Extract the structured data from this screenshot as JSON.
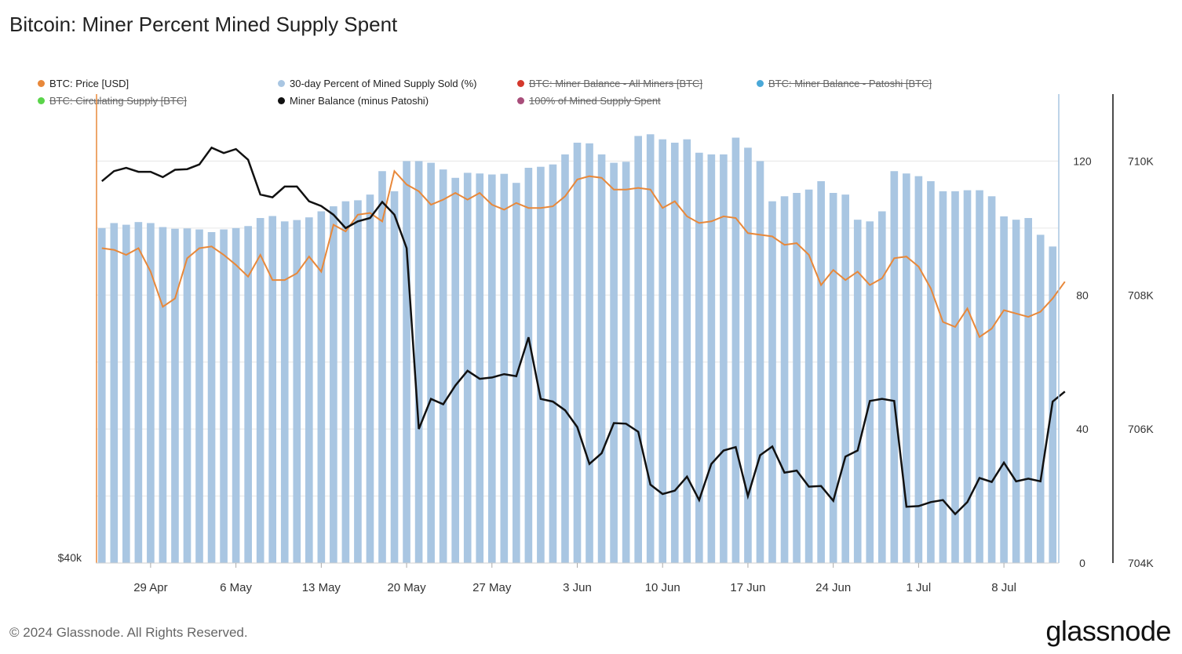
{
  "title": "Bitcoin: Miner Percent Mined Supply Spent",
  "legend": [
    {
      "label": "BTC: Price [USD]",
      "color": "#e8883a",
      "active": true
    },
    {
      "label": "30-day Percent of Mined Supply Sold (%)",
      "color": "#a9c6e2",
      "active": true
    },
    {
      "label": "BTC: Miner Balance - All Miners [BTC]",
      "color": "#d4382c",
      "active": false
    },
    {
      "label": "BTC: Miner Balance - Patoshi [BTC]",
      "color": "#4aa8d8",
      "active": false
    },
    {
      "label": "BTC: Circulating Supply [BTC]",
      "color": "#5ad44a",
      "active": false
    },
    {
      "label": "Miner Balance (minus Patoshi)",
      "color": "#111111",
      "active": true
    },
    {
      "label": "100% of Mined Supply Spent",
      "color": "#a84d7a",
      "active": false
    }
  ],
  "footer": "© 2024 Glassnode. All Rights Reserved.",
  "brand": "glassnode",
  "chart_data": {
    "type": "bar+line",
    "x_tick_labels": [
      "29 Apr",
      "6 May",
      "13 May",
      "20 May",
      "27 May",
      "3 Jun",
      "10 Jun",
      "17 Jun",
      "24 Jun",
      "1 Jul",
      "8 Jul"
    ],
    "x_tick_day_index": [
      4,
      11,
      18,
      25,
      32,
      39,
      46,
      53,
      60,
      67,
      74
    ],
    "x_start": "2024-04-25",
    "x_end": "2024-07-14",
    "left_axis": {
      "tick_labels": [
        "$40k"
      ],
      "scale": "log"
    },
    "middle_axis": {
      "ticks": [
        0,
        40,
        80,
        120
      ],
      "range": [
        0,
        140
      ]
    },
    "right_axis": {
      "ticks": [
        "704K",
        "706K",
        "708K",
        "710K"
      ],
      "range": [
        704000,
        711000
      ]
    },
    "grid": true,
    "series": [
      {
        "name": "30-day Percent of Mined Supply Sold (%)",
        "type": "bar",
        "axis": "middle",
        "color": "#a9c6e2",
        "values": [
          100,
          101.5,
          101,
          101.8,
          101.5,
          100.3,
          99.8,
          99.9,
          99.6,
          98.8,
          99.6,
          100,
          100.6,
          103,
          103.6,
          102,
          102.4,
          103.2,
          105,
          106.5,
          108,
          108.3,
          110,
          117,
          111,
          120,
          120,
          119.5,
          117.5,
          115,
          116.5,
          116.3,
          116,
          116.2,
          113.5,
          118,
          118.3,
          119,
          122,
          125.5,
          125.3,
          122,
          119.5,
          119.8,
          127.5,
          128,
          126.5,
          125.5,
          126.5,
          122.5,
          122,
          122,
          127,
          124,
          120,
          108,
          109.5,
          110.5,
          111.5,
          114,
          110.5,
          110,
          102.5,
          102,
          105,
          117,
          116.3,
          115.5,
          114,
          111,
          111,
          111.3,
          111.3,
          109.5,
          103.5,
          102.5,
          103,
          98,
          94.5
        ]
      },
      {
        "name": "BTC: Price [USD]",
        "type": "line",
        "axis": "middle",
        "color": "#e8883a",
        "values": [
          94,
          93.5,
          92,
          94,
          87,
          76.5,
          79,
          91,
          94,
          94.5,
          92,
          89,
          85.5,
          92,
          84.5,
          84.5,
          86.5,
          91.5,
          87,
          101,
          99,
          104,
          104.5,
          102,
          117,
          113,
          111,
          107,
          108.5,
          110.5,
          108.5,
          110.5,
          107,
          105.5,
          107.5,
          106,
          106,
          106.5,
          109.5,
          114.5,
          115.5,
          115,
          111.5,
          111.5,
          112,
          111.5,
          106,
          108,
          103.5,
          101.5,
          102,
          103.5,
          103,
          98.5,
          98,
          97.5,
          95,
          95.5,
          92,
          83,
          87.5,
          84.5,
          87,
          83,
          85,
          91,
          91.5,
          88.5,
          82,
          72,
          70.5,
          76,
          67.5,
          70,
          75.5,
          74.5,
          73.5,
          75,
          79,
          84
        ]
      },
      {
        "name": "Miner Balance (minus Patoshi)",
        "type": "line",
        "axis": "right",
        "color": "#111111",
        "values": [
          709700,
          709850,
          709900,
          709840,
          709840,
          709760,
          709870,
          709880,
          709950,
          710200,
          710120,
          710180,
          710020,
          709500,
          709460,
          709620,
          709620,
          709400,
          709330,
          709200,
          709000,
          709100,
          709150,
          709390,
          709200,
          708700,
          706000,
          706450,
          706370,
          706650,
          706870,
          706750,
          706770,
          706820,
          706790,
          707370,
          706450,
          706410,
          706280,
          706030,
          705480,
          705640,
          706090,
          706080,
          705960,
          705170,
          705030,
          705080,
          705290,
          704940,
          705480,
          705680,
          705730,
          705000,
          705610,
          705740,
          705350,
          705380,
          705140,
          705150,
          704930,
          705590,
          705680,
          706420,
          706450,
          706420,
          704840,
          704850,
          704910,
          704940,
          704730,
          704910,
          705270,
          705210,
          705500,
          705220,
          705260,
          705220,
          706410,
          706560
        ]
      }
    ]
  }
}
